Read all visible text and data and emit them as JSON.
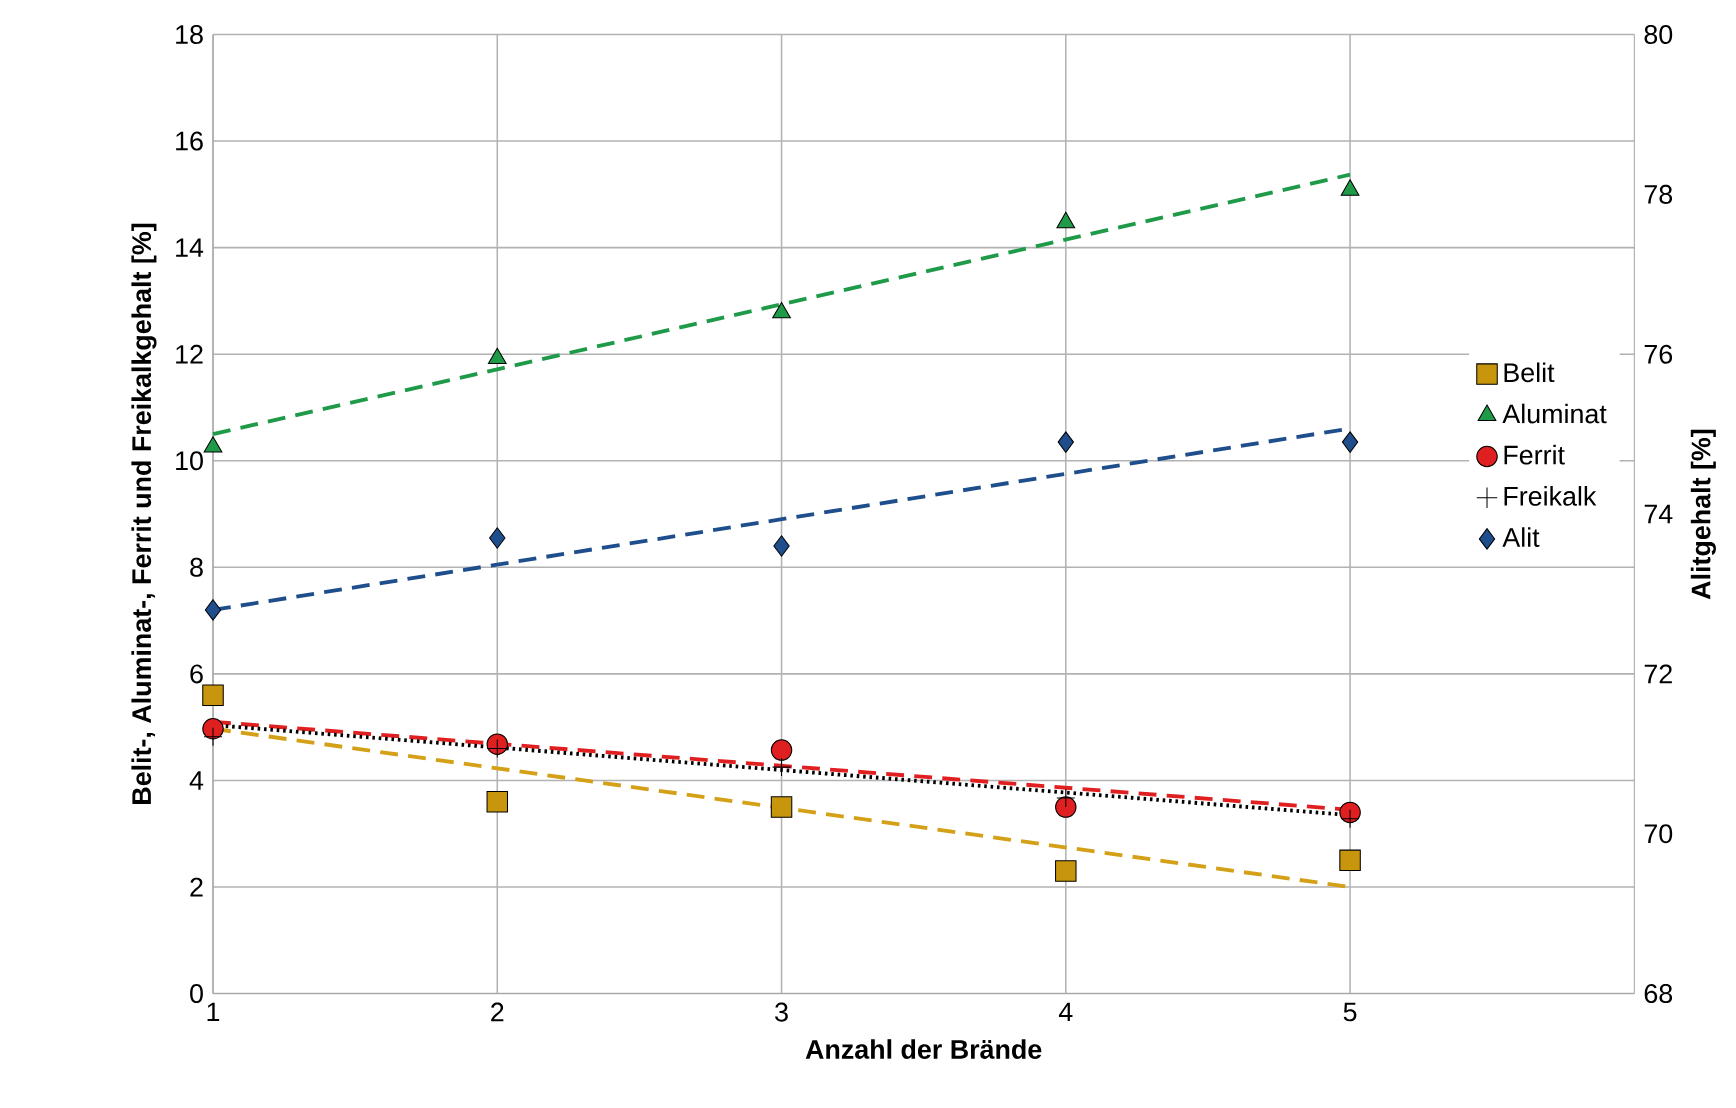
{
  "chart_data": {
    "type": "scatter",
    "xlabel": "Anzahl der Brände",
    "ylabel": "Belit-, Aluminat-, Ferrit und Freikalkgehalt [%]",
    "y2label": "Alitgehalt [%]",
    "xlim": [
      1,
      6
    ],
    "xticks": [
      1,
      2,
      3,
      4,
      5
    ],
    "ylim": [
      0,
      18
    ],
    "yticks": [
      0,
      2,
      4,
      6,
      8,
      10,
      12,
      14,
      16,
      18
    ],
    "y2lim": [
      68,
      80
    ],
    "y2ticks": [
      68,
      70,
      72,
      74,
      76,
      78,
      80
    ],
    "grid": true,
    "legend": "right",
    "series": [
      {
        "name": "Belit",
        "marker": "square",
        "color": "#c8960c",
        "x": [
          1,
          2,
          3,
          4,
          5
        ],
        "values": [
          5.6,
          3.6,
          3.5,
          2.3,
          2.5
        ]
      },
      {
        "name": "Aluminat",
        "marker": "triangle",
        "color": "#1e9a48",
        "x": [
          1,
          2,
          3,
          4,
          5
        ],
        "values": [
          10.26,
          11.92,
          12.78,
          14.47,
          15.08
        ]
      },
      {
        "name": "Ferrit",
        "marker": "circle",
        "color": "#e02020",
        "x": [
          1,
          2,
          3,
          4,
          5
        ],
        "values": [
          4.97,
          4.68,
          4.57,
          3.5,
          3.4
        ]
      },
      {
        "name": "Freikalk",
        "marker": "cross",
        "color": "#000000",
        "x": [
          1,
          2,
          3,
          4,
          5
        ],
        "values": [
          4.82,
          4.6,
          4.25,
          3.67,
          3.28
        ]
      },
      {
        "name": "Alit",
        "marker": "diamond",
        "color": "#1f4e8c",
        "axis": "y2",
        "x": [
          1,
          2,
          3,
          4,
          5
        ],
        "values": [
          72.8,
          73.7,
          73.6,
          74.9,
          74.9
        ]
      },
      {
        "type": "line",
        "marker": "none",
        "line_style": "dashed",
        "color": "#d4a017",
        "x": [
          1,
          5
        ],
        "values": [
          4.97,
          2.0
        ]
      },
      {
        "type": "line",
        "marker": "none",
        "line_style": "dashed",
        "color": "#1e9a48",
        "x": [
          1,
          5
        ],
        "values": [
          10.5,
          15.37
        ]
      },
      {
        "type": "line",
        "marker": "none",
        "line_style": "dashed",
        "color": "#e02020",
        "x": [
          1,
          5
        ],
        "values": [
          5.1,
          3.45
        ]
      },
      {
        "type": "line",
        "marker": "none",
        "line_style": "dotted",
        "color": "#000000",
        "x": [
          1,
          5
        ],
        "values": [
          5.04,
          3.35
        ]
      },
      {
        "type": "line",
        "marker": "none",
        "line_style": "dashed",
        "color": "#1f4e8c",
        "axis": "y2",
        "x": [
          1,
          5
        ],
        "values": [
          72.8,
          75.07
        ]
      }
    ]
  }
}
